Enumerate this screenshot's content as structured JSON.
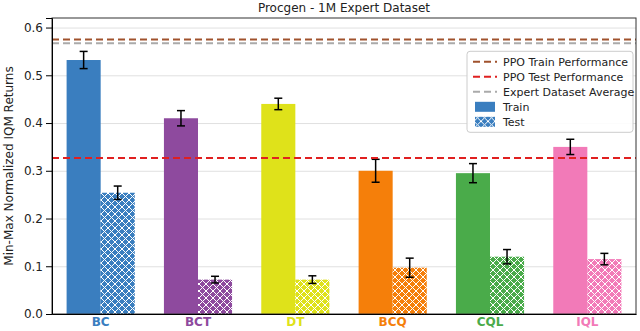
{
  "chart_data": {
    "type": "bar",
    "title": "Procgen - 1M Expert Dataset",
    "y_label": "Min-Max Normalized IQM Returns",
    "categories": [
      "BC",
      "BCT",
      "DT",
      "BCQ",
      "CQL",
      "IQL"
    ],
    "colors": [
      "#3a7ebf",
      "#8e4a9e",
      "#dfe21a",
      "#f57f0a",
      "#4aab4a",
      "#f27ab8"
    ],
    "series": [
      {
        "name": "Train",
        "values": [
          0.532,
          0.41,
          0.44,
          0.3,
          0.295,
          0.35
        ],
        "errors": [
          0.018,
          0.016,
          0.012,
          0.024,
          0.02,
          0.016
        ]
      },
      {
        "name": "Test",
        "values": [
          0.254,
          0.072,
          0.072,
          0.097,
          0.12,
          0.115
        ],
        "errors": [
          0.014,
          0.007,
          0.008,
          0.02,
          0.015,
          0.012
        ]
      }
    ],
    "lines": [
      {
        "name": "PPO Train Performance",
        "value": 0.575,
        "color": "#a0522d",
        "line_style": "dashed"
      },
      {
        "name": "PPO Test Performance",
        "value": 0.327,
        "color": "#e02020",
        "line_style": "dashed"
      },
      {
        "name": "Expert Dataset Average",
        "value": 0.567,
        "color": "#aaaaaa",
        "line_style": "dashed"
      }
    ],
    "ylim": [
      0,
      0.62
    ],
    "yticks": [
      {
        "value": 0,
        "label": "0.0"
      },
      {
        "value": 0.1,
        "label": "0.1"
      },
      {
        "value": 0.2,
        "label": "0.2"
      },
      {
        "value": 0.3,
        "label": "0.3"
      },
      {
        "value": 0.4,
        "label": "0.4"
      },
      {
        "value": 0.5,
        "label": "0.5"
      },
      {
        "value": 0.6,
        "label": "0.6"
      }
    ],
    "grid": true,
    "legend": "upper right"
  }
}
